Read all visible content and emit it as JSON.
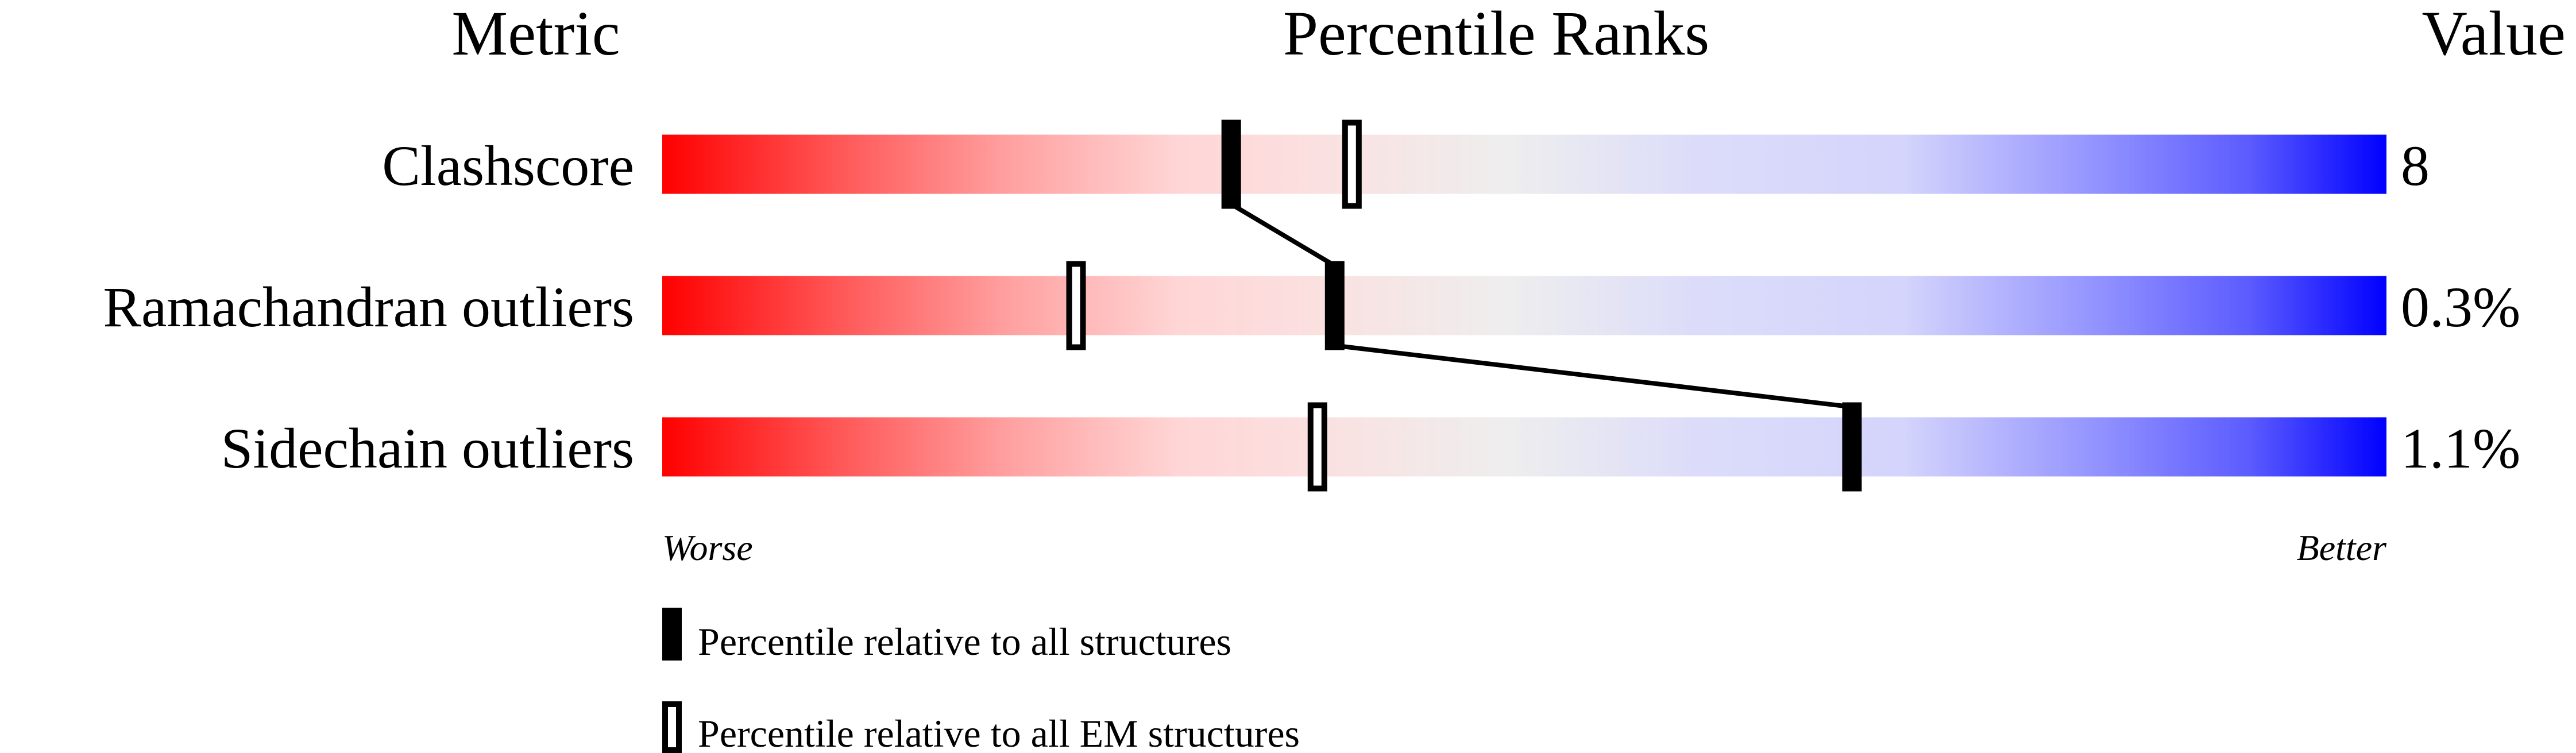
{
  "chart_data": {
    "type": "percentile-slider",
    "headers": {
      "metric": "Metric",
      "ranks": "Percentile Ranks",
      "value": "Value"
    },
    "xlim": [
      0,
      100
    ],
    "rows": [
      {
        "metric": "Clashscore",
        "value": "8",
        "percentile_all": 33,
        "percentile_em": 40
      },
      {
        "metric": "Ramachandran outliers",
        "value": "0.3%",
        "percentile_all": 39,
        "percentile_em": 24
      },
      {
        "metric": "Sidechain outliers",
        "value": "1.1%",
        "percentile_all": 69,
        "percentile_em": 38
      }
    ],
    "axis": {
      "worse": "Worse",
      "better": "Better"
    },
    "legend": [
      {
        "marker": "filled",
        "label": "Percentile relative to all structures"
      },
      {
        "marker": "open",
        "label": "Percentile relative to all EM structures"
      }
    ],
    "colors": {
      "worse": "#ff0000",
      "mid": "#eeeeee",
      "better": "#0000ff"
    }
  }
}
